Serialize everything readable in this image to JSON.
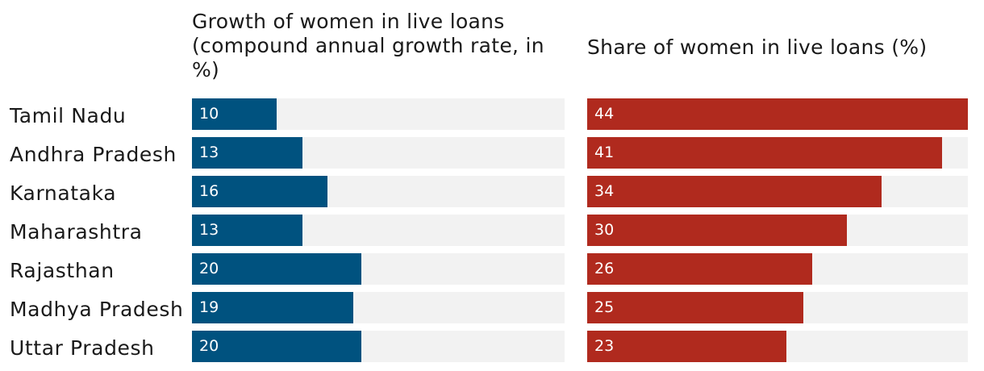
{
  "chart_data": [
    {
      "type": "bar",
      "orientation": "horizontal",
      "title": "Growth of women in live loans (compound annual growth rate, in %)",
      "categories": [
        "Tamil Nadu",
        "Andhra Pradesh",
        "Karnataka",
        "Maharashtra",
        "Rajasthan",
        "Madhya Pradesh",
        "Uttar Pradesh"
      ],
      "values": [
        10,
        13,
        16,
        13,
        20,
        19,
        20
      ],
      "xlim": [
        0,
        44
      ],
      "color": "#00527f",
      "grid": false,
      "value_labels": true
    },
    {
      "type": "bar",
      "orientation": "horizontal",
      "title": "Share of women in live loans (%)",
      "categories": [
        "Tamil Nadu",
        "Andhra Pradesh",
        "Karnataka",
        "Maharashtra",
        "Rajasthan",
        "Madhya Pradesh",
        "Uttar Pradesh"
      ],
      "values": [
        44,
        41,
        34,
        30,
        26,
        25,
        23
      ],
      "xlim": [
        0,
        44
      ],
      "color": "#b02a1e",
      "grid": false,
      "value_labels": true
    }
  ]
}
